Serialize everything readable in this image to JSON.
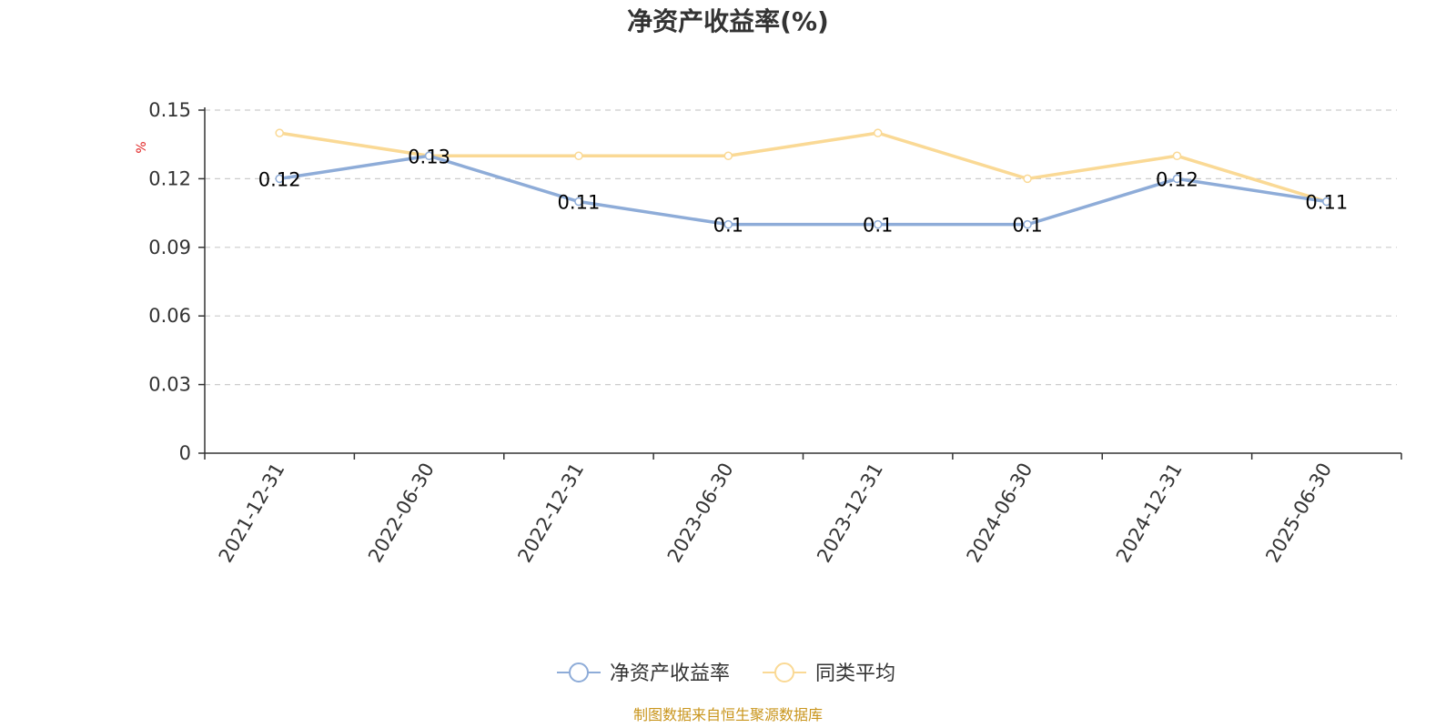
{
  "chart_data": {
    "type": "line",
    "title": "净资产收益率(%)",
    "ylabel": "%",
    "xlabel": "",
    "categories": [
      "2021-12-31",
      "2022-06-30",
      "2022-12-31",
      "2023-06-30",
      "2023-12-31",
      "2024-06-30",
      "2024-12-31",
      "2025-06-30"
    ],
    "series": [
      {
        "name": "净资产收益率",
        "values": [
          0.12,
          0.13,
          0.11,
          0.1,
          0.1,
          0.1,
          0.12,
          0.11
        ],
        "labels": [
          "0.12",
          "0.13",
          "0.11",
          "0.1",
          "0.1",
          "0.1",
          "0.12",
          "0.11"
        ],
        "color": "#8eacd8"
      },
      {
        "name": "同类平均",
        "values": [
          0.14,
          0.13,
          0.13,
          0.13,
          0.14,
          0.12,
          0.13,
          0.11
        ],
        "color": "#fad995"
      }
    ],
    "ylim": [
      0,
      0.15
    ],
    "yticks": [
      "0",
      "0.03",
      "0.06",
      "0.09",
      "0.12",
      "0.15"
    ],
    "grid": true,
    "legend": "bottom-center"
  },
  "source_note": "制图数据来自恒生聚源数据库"
}
